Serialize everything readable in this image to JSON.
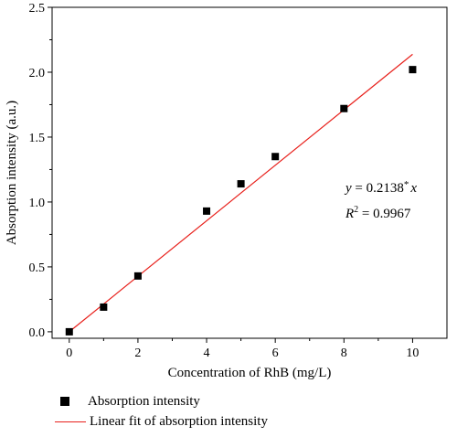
{
  "chart_data": {
    "type": "scatter",
    "title": "",
    "xlabel": "Concentration of RhB (mg/L)",
    "ylabel": "Absorption intensity (a.u.)",
    "xlim": [
      -0.5,
      11
    ],
    "ylim": [
      -0.05,
      2.5
    ],
    "x_ticks": [
      "0",
      "2",
      "4",
      "6",
      "8",
      "10"
    ],
    "y_ticks": [
      "0.0",
      "0.5",
      "1.0",
      "1.5",
      "2.0",
      "2.5"
    ],
    "series": [
      {
        "name": "Absorption intensity",
        "type": "scatter",
        "color": "#000000",
        "x": [
          0,
          1,
          2,
          4,
          5,
          6,
          8,
          10
        ],
        "y": [
          0.0,
          0.19,
          0.43,
          0.93,
          1.14,
          1.35,
          1.72,
          2.02
        ]
      },
      {
        "name": "Linear fit of absorption intensity",
        "type": "line",
        "color": "#e8201b",
        "slope": 0.2138,
        "x_range": [
          0,
          10
        ]
      }
    ],
    "annotations": {
      "equation_y": "y",
      "equation_rest": " = 0.2138",
      "equation_star": "*",
      "equation_x": "x",
      "r2_R": "R",
      "r2_sup": "2",
      "r2_rest": " = 0.9967"
    },
    "grid": false,
    "legend_position": "bottom-left"
  }
}
